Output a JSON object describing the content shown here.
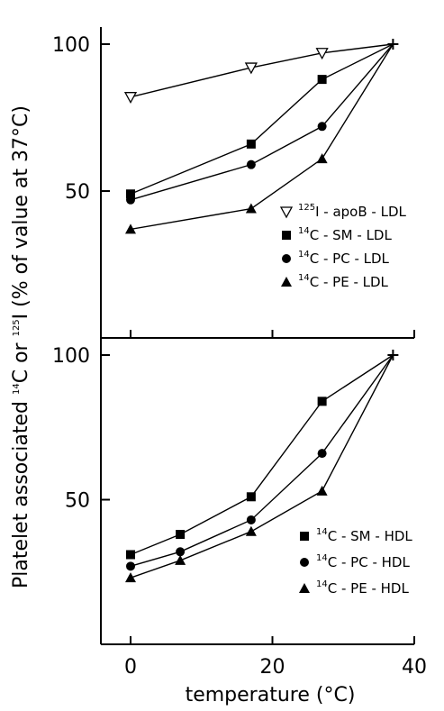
{
  "chart_data": [
    {
      "type": "line",
      "panel": "top",
      "xlim": [
        0,
        40
      ],
      "ylim": [
        0,
        100
      ],
      "yticks": [
        50,
        100
      ],
      "ytick_labels": [
        "50",
        "100"
      ],
      "legend_position": "lower-right",
      "series": [
        {
          "name": "125I-apoB-LDL",
          "legend": {
            "sup": "125",
            "text": "I - apoB - LDL"
          },
          "marker": "triangle-down-open",
          "x": [
            0,
            17,
            27,
            37
          ],
          "y": [
            82,
            92,
            97,
            100
          ]
        },
        {
          "name": "14C-SM-LDL",
          "legend": {
            "sup": "14",
            "text": "C - SM - LDL"
          },
          "marker": "square",
          "x": [
            0,
            17,
            27,
            37
          ],
          "y": [
            49,
            66,
            88,
            100
          ]
        },
        {
          "name": "14C-PC-LDL",
          "legend": {
            "sup": "14",
            "text": "C - PC - LDL"
          },
          "marker": "circle",
          "x": [
            0,
            17,
            27,
            37
          ],
          "y": [
            47,
            59,
            72,
            100
          ]
        },
        {
          "name": "14C-PE-LDL",
          "legend": {
            "sup": "14",
            "text": "C - PE - LDL"
          },
          "marker": "triangle",
          "x": [
            0,
            17,
            27,
            37
          ],
          "y": [
            37,
            44,
            61,
            100
          ]
        }
      ]
    },
    {
      "type": "line",
      "panel": "bottom",
      "xlim": [
        0,
        40
      ],
      "ylim": [
        0,
        100
      ],
      "xticks": [
        0,
        20,
        40
      ],
      "xtick_labels": [
        "0",
        "20",
        "40"
      ],
      "yticks": [
        50,
        100
      ],
      "ytick_labels": [
        "50",
        "100"
      ],
      "legend_position": "lower-right",
      "series": [
        {
          "name": "14C-SM-HDL",
          "legend": {
            "sup": "14",
            "text": "C - SM - HDL"
          },
          "marker": "square",
          "x": [
            0,
            7,
            17,
            27,
            37
          ],
          "y": [
            31,
            38,
            51,
            84,
            100
          ]
        },
        {
          "name": "14C-PC-HDL",
          "legend": {
            "sup": "14",
            "text": "C - PC - HDL"
          },
          "marker": "circle",
          "x": [
            0,
            7,
            17,
            27,
            37
          ],
          "y": [
            27,
            32,
            43,
            66,
            100
          ]
        },
        {
          "name": "14C-PE-HDL",
          "legend": {
            "sup": "14",
            "text": "C - PE - HDL"
          },
          "marker": "triangle",
          "x": [
            0,
            7,
            17,
            27,
            37
          ],
          "y": [
            23,
            29,
            39,
            53,
            100
          ]
        }
      ]
    }
  ],
  "axes": {
    "ylabel": {
      "p1": "Platelet associated ",
      "s1": "14",
      "p2": "C or ",
      "s2": "125",
      "p3": "I (% of value at 37°C)"
    },
    "xlabel": "temperature (°C)"
  }
}
